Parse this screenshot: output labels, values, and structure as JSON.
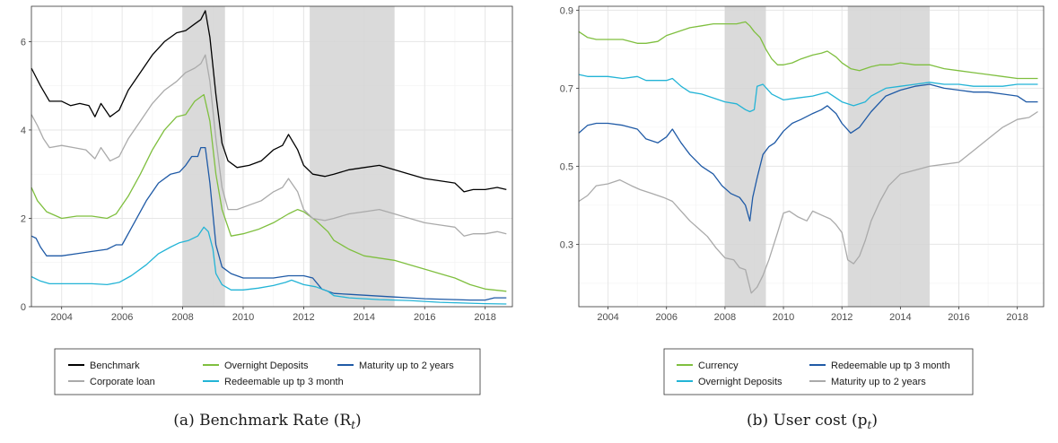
{
  "chart_data": [
    {
      "type": "line",
      "caption": "(a) Benchmark Rate (R",
      "caption_sub": "t",
      "caption_end": ")",
      "xlim": [
        2003.0,
        2018.9
      ],
      "ylim": [
        0,
        6.8
      ],
      "xticks": [
        2004,
        2006,
        2008,
        2010,
        2012,
        2014,
        2016,
        2018
      ],
      "xtick_labels": [
        "2004",
        "2006",
        "2008",
        "2010",
        "2012",
        "2014",
        "2016",
        "2018"
      ],
      "yticks": [
        0,
        2,
        4,
        6
      ],
      "ytick_labels": [
        "0",
        "2",
        "4",
        "6"
      ],
      "grid": true,
      "legend_position": "bottom",
      "shaded_periods": [
        [
          2008.0,
          2009.4
        ],
        [
          2012.2,
          2015.0
        ]
      ],
      "series": [
        {
          "name": "Benchmark",
          "color": "#000000",
          "x": [
            2003.0,
            2003.3,
            2003.6,
            2004.0,
            2004.3,
            2004.6,
            2004.9,
            2005.1,
            2005.3,
            2005.6,
            2005.9,
            2006.2,
            2006.6,
            2007.0,
            2007.4,
            2007.8,
            2008.1,
            2008.4,
            2008.6,
            2008.75,
            2008.9,
            2009.1,
            2009.3,
            2009.5,
            2009.8,
            2010.2,
            2010.6,
            2011.0,
            2011.3,
            2011.5,
            2011.8,
            2012.0,
            2012.3,
            2012.7,
            2013.0,
            2013.5,
            2014.0,
            2014.5,
            2015.0,
            2015.5,
            2016.0,
            2016.5,
            2017.0,
            2017.3,
            2017.6,
            2018.0,
            2018.4,
            2018.7
          ],
          "y": [
            5.4,
            5.0,
            4.65,
            4.65,
            4.55,
            4.6,
            4.55,
            4.3,
            4.6,
            4.3,
            4.45,
            4.9,
            5.3,
            5.7,
            6.0,
            6.2,
            6.25,
            6.4,
            6.5,
            6.7,
            6.1,
            4.8,
            3.7,
            3.3,
            3.15,
            3.2,
            3.3,
            3.55,
            3.65,
            3.9,
            3.55,
            3.2,
            3.0,
            2.95,
            3.0,
            3.1,
            3.15,
            3.2,
            3.1,
            3.0,
            2.9,
            2.85,
            2.8,
            2.6,
            2.65,
            2.65,
            2.7,
            2.65
          ]
        },
        {
          "name": "Overnight Deposits",
          "color": "#7fbf3f",
          "x": [
            2003.0,
            2003.2,
            2003.5,
            2004.0,
            2004.5,
            2005.0,
            2005.5,
            2005.8,
            2006.2,
            2006.6,
            2007.0,
            2007.4,
            2007.8,
            2008.1,
            2008.4,
            2008.7,
            2008.9,
            2009.1,
            2009.3,
            2009.6,
            2010.0,
            2010.5,
            2011.0,
            2011.5,
            2011.8,
            2012.0,
            2012.4,
            2012.8,
            2013.0,
            2013.5,
            2014.0,
            2014.5,
            2015.0,
            2015.5,
            2016.0,
            2016.5,
            2017.0,
            2017.5,
            2018.0,
            2018.7
          ],
          "y": [
            2.7,
            2.4,
            2.15,
            2.0,
            2.05,
            2.05,
            2.0,
            2.1,
            2.5,
            3.0,
            3.55,
            4.0,
            4.3,
            4.35,
            4.65,
            4.8,
            4.2,
            3.0,
            2.2,
            1.6,
            1.65,
            1.75,
            1.9,
            2.1,
            2.2,
            2.15,
            1.95,
            1.7,
            1.5,
            1.3,
            1.15,
            1.1,
            1.05,
            0.95,
            0.85,
            0.75,
            0.65,
            0.5,
            0.4,
            0.35
          ]
        },
        {
          "name": "Maturity up to 2 years",
          "color": "#1f5aa6",
          "x": [
            2003.0,
            2003.15,
            2003.3,
            2003.5,
            2004.0,
            2004.5,
            2005.0,
            2005.5,
            2005.8,
            2006.0,
            2006.4,
            2006.8,
            2007.2,
            2007.6,
            2007.9,
            2008.1,
            2008.3,
            2008.5,
            2008.6,
            2008.75,
            2008.9,
            2009.1,
            2009.3,
            2009.6,
            2010.0,
            2010.5,
            2011.0,
            2011.5,
            2012.0,
            2012.3,
            2012.6,
            2013.0,
            2013.5,
            2014.0,
            2014.5,
            2015.0,
            2015.5,
            2016.0,
            2016.5,
            2017.0,
            2017.5,
            2018.0,
            2018.3,
            2018.7
          ],
          "y": [
            1.6,
            1.55,
            1.35,
            1.15,
            1.15,
            1.2,
            1.25,
            1.3,
            1.4,
            1.4,
            1.9,
            2.4,
            2.8,
            3.0,
            3.05,
            3.2,
            3.4,
            3.4,
            3.6,
            3.6,
            2.8,
            1.4,
            0.9,
            0.75,
            0.65,
            0.65,
            0.65,
            0.7,
            0.7,
            0.65,
            0.4,
            0.3,
            0.28,
            0.26,
            0.24,
            0.22,
            0.2,
            0.18,
            0.17,
            0.16,
            0.15,
            0.15,
            0.2,
            0.2
          ]
        },
        {
          "name": "Corporate loan",
          "color": "#aaaaaa",
          "x": [
            2003.0,
            2003.2,
            2003.4,
            2003.6,
            2004.0,
            2004.4,
            2004.8,
            2005.1,
            2005.3,
            2005.6,
            2005.9,
            2006.2,
            2006.6,
            2007.0,
            2007.4,
            2007.8,
            2008.1,
            2008.4,
            2008.6,
            2008.75,
            2008.9,
            2009.1,
            2009.3,
            2009.5,
            2009.8,
            2010.2,
            2010.6,
            2011.0,
            2011.3,
            2011.5,
            2011.8,
            2012.0,
            2012.3,
            2012.7,
            2013.0,
            2013.5,
            2014.0,
            2014.5,
            2015.0,
            2015.5,
            2016.0,
            2016.5,
            2017.0,
            2017.3,
            2017.6,
            2018.0,
            2018.4,
            2018.7
          ],
          "y": [
            4.35,
            4.1,
            3.8,
            3.6,
            3.65,
            3.6,
            3.55,
            3.35,
            3.6,
            3.3,
            3.4,
            3.8,
            4.2,
            4.6,
            4.9,
            5.1,
            5.3,
            5.4,
            5.5,
            5.7,
            5.1,
            3.8,
            2.7,
            2.2,
            2.2,
            2.3,
            2.4,
            2.6,
            2.7,
            2.9,
            2.6,
            2.2,
            2.0,
            1.95,
            2.0,
            2.1,
            2.15,
            2.2,
            2.1,
            2.0,
            1.9,
            1.85,
            1.8,
            1.6,
            1.65,
            1.65,
            1.7,
            1.65
          ]
        },
        {
          "name": "Redeemable up tp 3 month",
          "color": "#23b4d6",
          "x": [
            2003.0,
            2003.3,
            2003.6,
            2004.0,
            2004.5,
            2005.0,
            2005.5,
            2005.9,
            2006.3,
            2006.8,
            2007.2,
            2007.6,
            2007.9,
            2008.2,
            2008.5,
            2008.7,
            2008.85,
            2009.0,
            2009.1,
            2009.3,
            2009.6,
            2010.0,
            2010.5,
            2011.0,
            2011.4,
            2011.6,
            2012.0,
            2012.4,
            2012.8,
            2013.0,
            2013.5,
            2014.0,
            2014.5,
            2015.0,
            2015.5,
            2016.0,
            2016.5,
            2017.0,
            2017.5,
            2018.0,
            2018.7
          ],
          "y": [
            0.68,
            0.58,
            0.52,
            0.52,
            0.52,
            0.52,
            0.5,
            0.55,
            0.7,
            0.95,
            1.2,
            1.35,
            1.45,
            1.5,
            1.6,
            1.8,
            1.7,
            1.3,
            0.75,
            0.5,
            0.38,
            0.38,
            0.42,
            0.48,
            0.55,
            0.6,
            0.5,
            0.45,
            0.35,
            0.25,
            0.2,
            0.18,
            0.16,
            0.15,
            0.14,
            0.12,
            0.1,
            0.09,
            0.08,
            0.07,
            0.06
          ]
        }
      ]
    },
    {
      "type": "line",
      "caption": "(b) User cost (p",
      "caption_sub": "t",
      "caption_end": ")",
      "xlim": [
        2003.0,
        2018.9
      ],
      "ylim": [
        0.14,
        0.91
      ],
      "xticks": [
        2004,
        2006,
        2008,
        2010,
        2012,
        2014,
        2016,
        2018
      ],
      "xtick_labels": [
        "2004",
        "2006",
        "2008",
        "2010",
        "2012",
        "2014",
        "2016",
        "2018"
      ],
      "yticks": [
        0.3,
        0.5,
        0.7,
        0.9
      ],
      "ytick_labels": [
        "0.3",
        "0.5",
        "0.7",
        "0.9"
      ],
      "grid": true,
      "legend_position": "bottom",
      "shaded_periods": [
        [
          2008.0,
          2009.4
        ],
        [
          2012.2,
          2015.0
        ]
      ],
      "series": [
        {
          "name": "Currency",
          "color": "#7fbf3f",
          "x": [
            2003.0,
            2003.3,
            2003.6,
            2004.0,
            2004.5,
            2005.0,
            2005.3,
            2005.7,
            2006.0,
            2006.4,
            2006.8,
            2007.2,
            2007.6,
            2008.0,
            2008.4,
            2008.7,
            2008.85,
            2009.0,
            2009.2,
            2009.4,
            2009.6,
            2009.8,
            2010.0,
            2010.3,
            2010.6,
            2011.0,
            2011.3,
            2011.5,
            2011.8,
            2012.0,
            2012.3,
            2012.6,
            2013.0,
            2013.3,
            2013.7,
            2014.0,
            2014.5,
            2015.0,
            2015.5,
            2016.0,
            2016.5,
            2017.0,
            2017.5,
            2018.0,
            2018.4,
            2018.7
          ],
          "y": [
            0.845,
            0.83,
            0.825,
            0.825,
            0.825,
            0.815,
            0.815,
            0.82,
            0.835,
            0.845,
            0.855,
            0.86,
            0.865,
            0.865,
            0.865,
            0.87,
            0.86,
            0.845,
            0.83,
            0.8,
            0.775,
            0.76,
            0.76,
            0.765,
            0.775,
            0.785,
            0.79,
            0.795,
            0.78,
            0.765,
            0.75,
            0.745,
            0.755,
            0.76,
            0.76,
            0.765,
            0.76,
            0.76,
            0.75,
            0.745,
            0.74,
            0.735,
            0.73,
            0.725,
            0.725,
            0.725
          ]
        },
        {
          "name": "Redeemable up tp 3 month",
          "color": "#1f5aa6",
          "x": [
            2003.0,
            2003.3,
            2003.6,
            2004.0,
            2004.5,
            2005.0,
            2005.3,
            2005.7,
            2006.0,
            2006.2,
            2006.5,
            2006.8,
            2007.2,
            2007.6,
            2007.9,
            2008.2,
            2008.5,
            2008.7,
            2008.85,
            2008.95,
            2009.1,
            2009.3,
            2009.5,
            2009.7,
            2010.0,
            2010.3,
            2010.6,
            2011.0,
            2011.3,
            2011.5,
            2011.8,
            2012.0,
            2012.3,
            2012.6,
            2013.0,
            2013.5,
            2014.0,
            2014.5,
            2015.0,
            2015.5,
            2016.0,
            2016.5,
            2017.0,
            2017.5,
            2018.0,
            2018.3,
            2018.7
          ],
          "y": [
            0.585,
            0.605,
            0.61,
            0.61,
            0.605,
            0.595,
            0.57,
            0.56,
            0.575,
            0.595,
            0.56,
            0.53,
            0.5,
            0.48,
            0.45,
            0.43,
            0.42,
            0.4,
            0.36,
            0.42,
            0.47,
            0.53,
            0.55,
            0.56,
            0.59,
            0.61,
            0.62,
            0.635,
            0.645,
            0.655,
            0.635,
            0.61,
            0.585,
            0.6,
            0.64,
            0.68,
            0.695,
            0.705,
            0.71,
            0.7,
            0.695,
            0.69,
            0.69,
            0.685,
            0.68,
            0.665,
            0.665
          ]
        },
        {
          "name": "Overnight Deposits",
          "color": "#23b4d6",
          "x": [
            2003.0,
            2003.3,
            2003.6,
            2004.0,
            2004.5,
            2005.0,
            2005.3,
            2005.7,
            2006.0,
            2006.2,
            2006.5,
            2006.8,
            2007.2,
            2007.6,
            2008.0,
            2008.4,
            2008.7,
            2008.85,
            2009.0,
            2009.1,
            2009.3,
            2009.6,
            2010.0,
            2010.5,
            2011.0,
            2011.5,
            2011.8,
            2012.0,
            2012.4,
            2012.8,
            2013.0,
            2013.5,
            2014.0,
            2014.5,
            2015.0,
            2015.5,
            2016.0,
            2016.5,
            2017.0,
            2017.5,
            2018.0,
            2018.7
          ],
          "y": [
            0.735,
            0.73,
            0.73,
            0.73,
            0.725,
            0.73,
            0.72,
            0.72,
            0.72,
            0.725,
            0.705,
            0.69,
            0.685,
            0.675,
            0.665,
            0.66,
            0.645,
            0.64,
            0.645,
            0.705,
            0.71,
            0.685,
            0.67,
            0.675,
            0.68,
            0.69,
            0.675,
            0.665,
            0.655,
            0.665,
            0.68,
            0.7,
            0.705,
            0.71,
            0.715,
            0.71,
            0.71,
            0.705,
            0.705,
            0.705,
            0.71,
            0.71
          ]
        },
        {
          "name": "Maturity up to 2 years",
          "color": "#aaaaaa",
          "x": [
            2003.0,
            2003.3,
            2003.6,
            2004.0,
            2004.4,
            2004.8,
            2005.1,
            2005.5,
            2005.9,
            2006.2,
            2006.5,
            2006.8,
            2007.1,
            2007.4,
            2007.7,
            2008.0,
            2008.3,
            2008.5,
            2008.7,
            2008.9,
            2009.1,
            2009.3,
            2009.5,
            2009.8,
            2010.0,
            2010.2,
            2010.5,
            2010.8,
            2011.0,
            2011.3,
            2011.6,
            2011.8,
            2012.0,
            2012.2,
            2012.4,
            2012.6,
            2012.8,
            2013.0,
            2013.3,
            2013.6,
            2014.0,
            2014.5,
            2015.0,
            2015.5,
            2016.0,
            2016.5,
            2017.0,
            2017.5,
            2018.0,
            2018.4,
            2018.7
          ],
          "y": [
            0.41,
            0.425,
            0.45,
            0.455,
            0.465,
            0.45,
            0.44,
            0.43,
            0.42,
            0.41,
            0.385,
            0.36,
            0.34,
            0.32,
            0.29,
            0.265,
            0.26,
            0.24,
            0.235,
            0.175,
            0.19,
            0.22,
            0.26,
            0.33,
            0.38,
            0.385,
            0.37,
            0.36,
            0.385,
            0.375,
            0.365,
            0.35,
            0.33,
            0.26,
            0.25,
            0.27,
            0.31,
            0.36,
            0.41,
            0.45,
            0.48,
            0.49,
            0.5,
            0.505,
            0.51,
            0.54,
            0.57,
            0.6,
            0.62,
            0.625,
            0.64
          ]
        }
      ]
    }
  ],
  "legend_a": {
    "order": [
      0,
      3,
      1,
      4,
      2
    ]
  },
  "legend_b": {
    "order": [
      0,
      2,
      1,
      3
    ]
  }
}
